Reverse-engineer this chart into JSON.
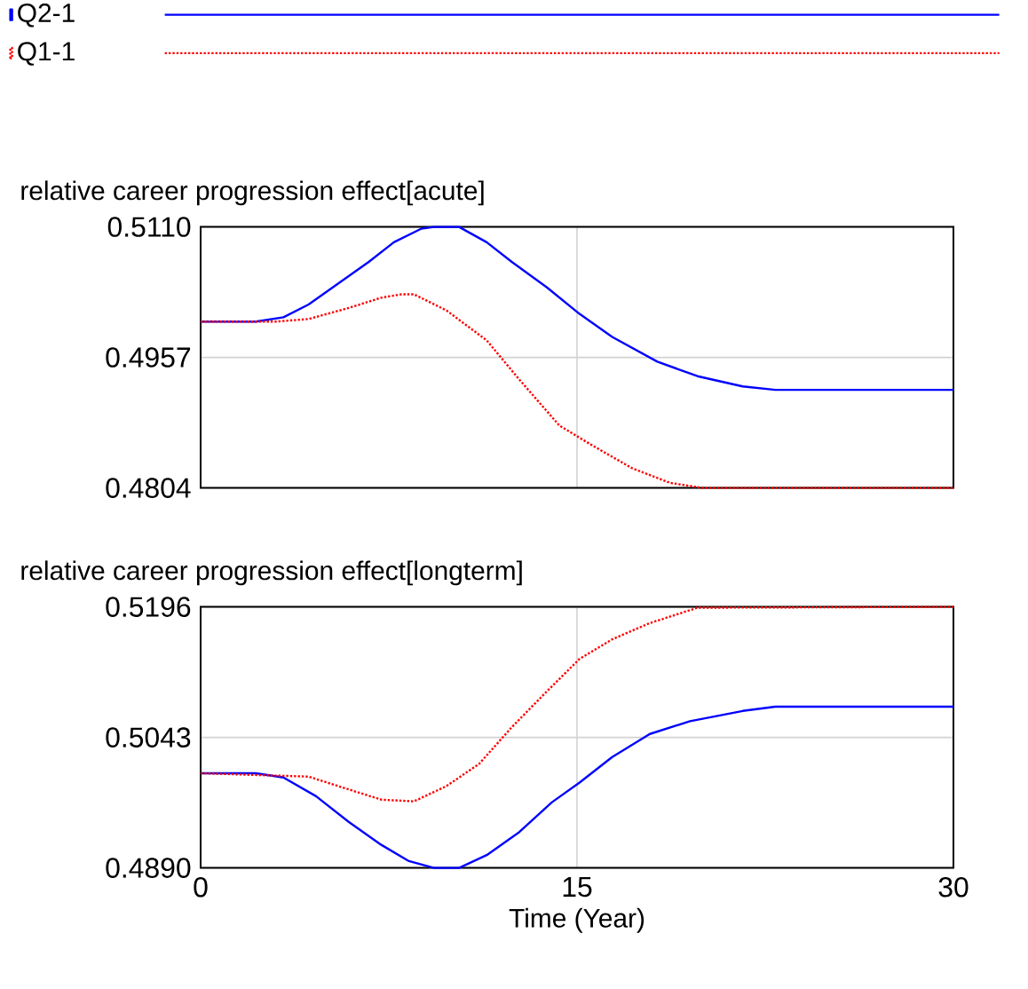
{
  "chart_data": [
    {
      "type": "line",
      "title": "relative career progression effect[acute]",
      "legend": "top",
      "grid": true,
      "tick_labels": "y",
      "xlim": [
        0,
        30
      ],
      "xticks": [
        0,
        15,
        30
      ],
      "ylim": [
        0.4804,
        0.511
      ],
      "yticks": [
        {
          "value": 0.4804,
          "label": "0.4804"
        },
        {
          "value": 0.4957,
          "label": "0.4957"
        },
        {
          "value": 0.511,
          "label": "0.5110"
        }
      ],
      "series": [
        {
          "name": "Q2-1",
          "color": "#0000ff",
          "line_style": "solid",
          "x": [
            0,
            2.2,
            3.3,
            4.3,
            5.6,
            6.7,
            7.7,
            8.8,
            9.3,
            10.3,
            11.4,
            12.4,
            13.8,
            15.1,
            16.4,
            18.2,
            19.8,
            21.6,
            22.9,
            30
          ],
          "values": [
            0.4999,
            0.4999,
            0.5004,
            0.5019,
            0.5046,
            0.5069,
            0.5092,
            0.5108,
            0.511,
            0.511,
            0.5092,
            0.5069,
            0.5039,
            0.5008,
            0.4981,
            0.4952,
            0.4935,
            0.4923,
            0.4919,
            0.4919
          ]
        },
        {
          "name": "Q1-1",
          "color": "#ff0000",
          "line_style": "dotted",
          "x": [
            0,
            3.0,
            4.3,
            5.9,
            7.2,
            8.0,
            8.5,
            9.8,
            11.4,
            12.7,
            14.3,
            15.6,
            17.2,
            18.7,
            20.0,
            30
          ],
          "values": [
            0.4999,
            0.4999,
            0.5002,
            0.5015,
            0.5027,
            0.5031,
            0.5031,
            0.5012,
            0.4977,
            0.4931,
            0.4877,
            0.4854,
            0.4827,
            0.481,
            0.4804,
            0.4804
          ]
        }
      ]
    },
    {
      "type": "line",
      "title": "relative career progression effect[longterm]",
      "xlabel": "Time (Year)",
      "grid": true,
      "xlim": [
        0,
        30
      ],
      "xticks": [
        0,
        15,
        30
      ],
      "ylim": [
        0.489,
        0.5196
      ],
      "yticks": [
        {
          "value": 0.489,
          "label": "0.4890"
        },
        {
          "value": 0.5043,
          "label": "0.5043"
        },
        {
          "value": 0.5196,
          "label": "0.5196"
        }
      ],
      "series": [
        {
          "color": "#0000ff",
          "line_style": "solid",
          "x": [
            0,
            2.2,
            3.3,
            4.6,
            5.9,
            7.2,
            8.3,
            9.3,
            10.3,
            11.4,
            12.7,
            14.0,
            15.1,
            16.4,
            17.9,
            19.5,
            21.6,
            22.9,
            30
          ],
          "values": [
            0.5001,
            0.5001,
            0.4996,
            0.4974,
            0.4944,
            0.4917,
            0.4898,
            0.489,
            0.489,
            0.4905,
            0.4932,
            0.4967,
            0.499,
            0.502,
            0.5047,
            0.5062,
            0.5074,
            0.5079,
            0.5079
          ]
        },
        {
          "color": "#ff0000",
          "line_style": "dotted",
          "x": [
            0,
            4.3,
            5.9,
            7.2,
            8.5,
            9.8,
            11.1,
            12.4,
            13.8,
            15.1,
            16.4,
            17.9,
            19.8,
            30
          ],
          "values": [
            0.5001,
            0.4997,
            0.4982,
            0.497,
            0.4968,
            0.4986,
            0.5012,
            0.5055,
            0.5097,
            0.5135,
            0.5158,
            0.5177,
            0.5195,
            0.5196
          ]
        }
      ]
    }
  ]
}
